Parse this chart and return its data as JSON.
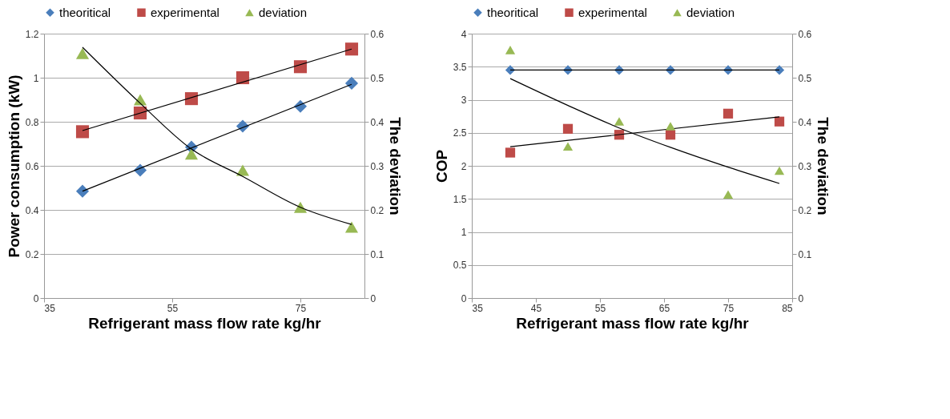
{
  "chart_data": [
    {
      "type": "scatter",
      "xlabel": "Refrigerant mass flow rate  kg/hr",
      "ylabel": "Power consumption (kW)",
      "y2label": "The deviation",
      "xlim": [
        35,
        85
      ],
      "xticks": [
        35,
        55,
        75
      ],
      "ylim": [
        0,
        1.2
      ],
      "yticks": [
        0,
        0.2,
        0.4,
        0.6,
        0.8,
        1,
        1.2
      ],
      "y2lim": [
        0,
        0.6
      ],
      "y2ticks": [
        0,
        0.1,
        0.2,
        0.3,
        0.4,
        0.5,
        0.6
      ],
      "grid": "y",
      "legend": "top",
      "series": [
        {
          "name": "theoritical",
          "color": "#4a7ebb",
          "marker": "diamond",
          "x": [
            41,
            50,
            58,
            66,
            75,
            83
          ],
          "values": [
            0.485,
            0.58,
            0.685,
            0.78,
            0.87,
            0.975
          ]
        },
        {
          "name": "experimental",
          "color": "#be4b48",
          "marker": "square",
          "x": [
            41,
            50,
            58,
            66,
            75,
            83
          ],
          "values": [
            0.755,
            0.84,
            0.905,
            1.0,
            1.05,
            1.13
          ]
        },
        {
          "name": "deviation",
          "color": "#98b954",
          "marker": "triangle",
          "axis": "y2",
          "x": [
            41,
            50,
            58,
            66,
            75,
            83
          ],
          "values": [
            0.555,
            0.45,
            0.327,
            0.29,
            0.206,
            0.161
          ]
        },
        {
          "type": "line",
          "color": "#000000",
          "x": [
            41,
            83
          ],
          "values": [
            0.485,
            0.97
          ]
        },
        {
          "type": "line",
          "color": "#000000",
          "x": [
            41,
            83
          ],
          "values": [
            0.76,
            1.13
          ]
        },
        {
          "type": "line",
          "color": "#000000",
          "axis": "y2",
          "x": [
            41,
            50,
            58,
            66,
            75,
            83
          ],
          "values": [
            0.569,
            0.442,
            0.338,
            0.276,
            0.206,
            0.167
          ]
        }
      ]
    },
    {
      "type": "scatter",
      "xlabel": "Refrigerant mass flow rate  kg/hr",
      "ylabel": "COP",
      "y2label": "The deviation",
      "xlim": [
        35,
        85
      ],
      "xticks": [
        35,
        45,
        55,
        65,
        75,
        85
      ],
      "ylim": [
        0,
        4
      ],
      "yticks": [
        0,
        0.5,
        1,
        1.5,
        2,
        2.5,
        3,
        3.5,
        4
      ],
      "y2lim": [
        0,
        0.6
      ],
      "y2ticks": [
        0,
        0.1,
        0.2,
        0.3,
        0.4,
        0.5,
        0.6
      ],
      "grid": "y",
      "legend": "top",
      "series": [
        {
          "name": "theoritical",
          "color": "#4a7ebb",
          "marker": "diamond",
          "x": [
            41,
            50,
            58,
            66,
            75,
            83
          ],
          "values": [
            3.45,
            3.45,
            3.45,
            3.45,
            3.45,
            3.45
          ]
        },
        {
          "name": "experimental",
          "color": "#be4b48",
          "marker": "square",
          "x": [
            41,
            50,
            58,
            66,
            75,
            83
          ],
          "values": [
            2.2,
            2.56,
            2.47,
            2.47,
            2.79,
            2.67
          ]
        },
        {
          "name": "deviation",
          "color": "#98b954",
          "marker": "triangle",
          "axis": "y2",
          "x": [
            41,
            50,
            58,
            66,
            75,
            83
          ],
          "values": [
            0.563,
            0.344,
            0.401,
            0.39,
            0.235,
            0.289
          ]
        },
        {
          "type": "line",
          "color": "#000000",
          "x": [
            41,
            83
          ],
          "values": [
            3.45,
            3.45
          ]
        },
        {
          "type": "line",
          "color": "#000000",
          "x": [
            41,
            83
          ],
          "values": [
            2.29,
            2.74
          ]
        },
        {
          "type": "line",
          "color": "#000000",
          "axis": "y2",
          "x": [
            41,
            50,
            58,
            66,
            75,
            83
          ],
          "values": [
            0.498,
            0.437,
            0.386,
            0.342,
            0.297,
            0.26
          ]
        }
      ]
    }
  ]
}
